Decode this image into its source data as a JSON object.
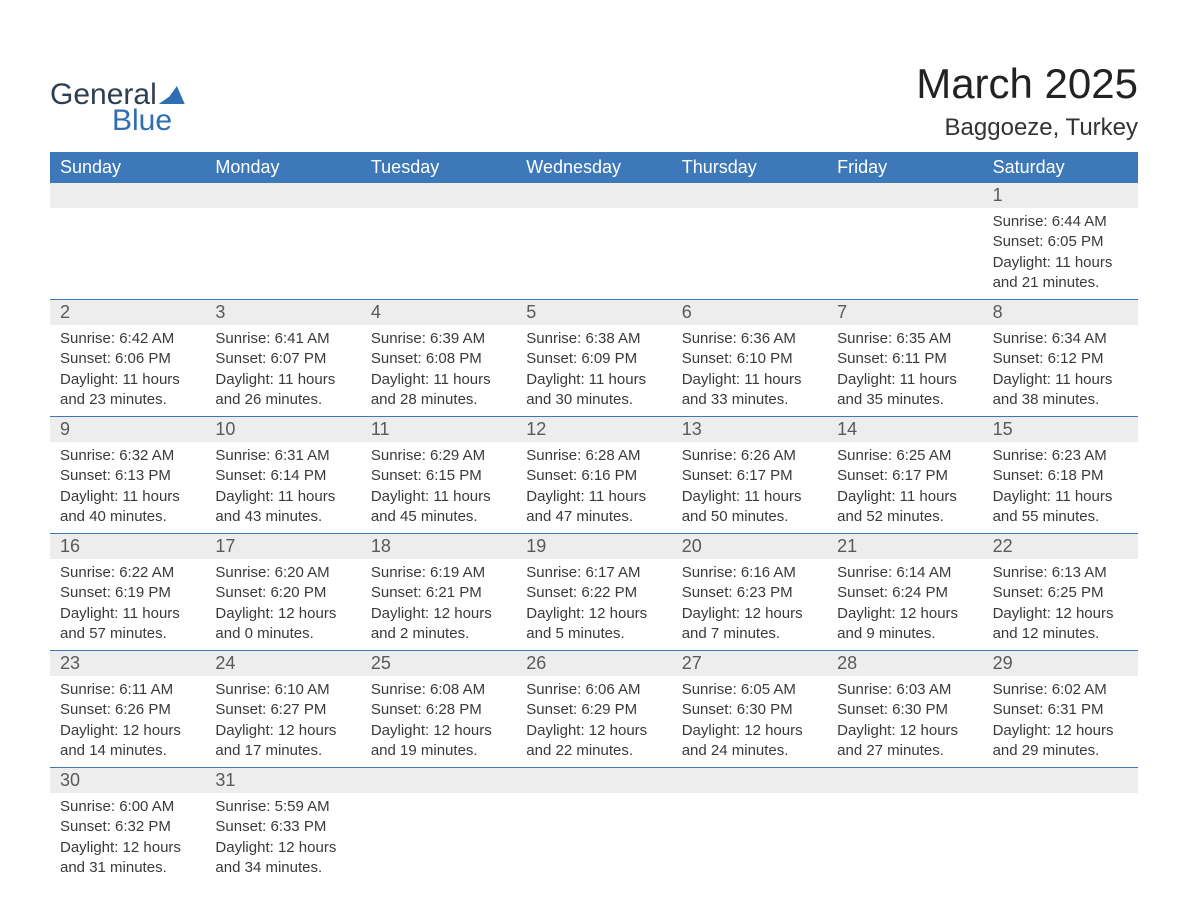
{
  "colors": {
    "header_bg": "#3d78b8",
    "header_text": "#ffffff",
    "daynum_bg": "#ededed",
    "body_text": "#3a3a3a",
    "row_border": "#3d78b8",
    "logo_dark": "#2d3e50",
    "logo_blue": "#2f6eb0"
  },
  "logo": {
    "word1": "General",
    "word2": "Blue"
  },
  "title": {
    "month": "March 2025",
    "location": "Baggoeze, Turkey"
  },
  "weekdays": [
    "Sunday",
    "Monday",
    "Tuesday",
    "Wednesday",
    "Thursday",
    "Friday",
    "Saturday"
  ],
  "weeks": [
    [
      {
        "n": "",
        "lines": []
      },
      {
        "n": "",
        "lines": []
      },
      {
        "n": "",
        "lines": []
      },
      {
        "n": "",
        "lines": []
      },
      {
        "n": "",
        "lines": []
      },
      {
        "n": "",
        "lines": []
      },
      {
        "n": "1",
        "lines": [
          "Sunrise: 6:44 AM",
          "Sunset: 6:05 PM",
          "Daylight: 11 hours and 21 minutes."
        ]
      }
    ],
    [
      {
        "n": "2",
        "lines": [
          "Sunrise: 6:42 AM",
          "Sunset: 6:06 PM",
          "Daylight: 11 hours and 23 minutes."
        ]
      },
      {
        "n": "3",
        "lines": [
          "Sunrise: 6:41 AM",
          "Sunset: 6:07 PM",
          "Daylight: 11 hours and 26 minutes."
        ]
      },
      {
        "n": "4",
        "lines": [
          "Sunrise: 6:39 AM",
          "Sunset: 6:08 PM",
          "Daylight: 11 hours and 28 minutes."
        ]
      },
      {
        "n": "5",
        "lines": [
          "Sunrise: 6:38 AM",
          "Sunset: 6:09 PM",
          "Daylight: 11 hours and 30 minutes."
        ]
      },
      {
        "n": "6",
        "lines": [
          "Sunrise: 6:36 AM",
          "Sunset: 6:10 PM",
          "Daylight: 11 hours and 33 minutes."
        ]
      },
      {
        "n": "7",
        "lines": [
          "Sunrise: 6:35 AM",
          "Sunset: 6:11 PM",
          "Daylight: 11 hours and 35 minutes."
        ]
      },
      {
        "n": "8",
        "lines": [
          "Sunrise: 6:34 AM",
          "Sunset: 6:12 PM",
          "Daylight: 11 hours and 38 minutes."
        ]
      }
    ],
    [
      {
        "n": "9",
        "lines": [
          "Sunrise: 6:32 AM",
          "Sunset: 6:13 PM",
          "Daylight: 11 hours and 40 minutes."
        ]
      },
      {
        "n": "10",
        "lines": [
          "Sunrise: 6:31 AM",
          "Sunset: 6:14 PM",
          "Daylight: 11 hours and 43 minutes."
        ]
      },
      {
        "n": "11",
        "lines": [
          "Sunrise: 6:29 AM",
          "Sunset: 6:15 PM",
          "Daylight: 11 hours and 45 minutes."
        ]
      },
      {
        "n": "12",
        "lines": [
          "Sunrise: 6:28 AM",
          "Sunset: 6:16 PM",
          "Daylight: 11 hours and 47 minutes."
        ]
      },
      {
        "n": "13",
        "lines": [
          "Sunrise: 6:26 AM",
          "Sunset: 6:17 PM",
          "Daylight: 11 hours and 50 minutes."
        ]
      },
      {
        "n": "14",
        "lines": [
          "Sunrise: 6:25 AM",
          "Sunset: 6:17 PM",
          "Daylight: 11 hours and 52 minutes."
        ]
      },
      {
        "n": "15",
        "lines": [
          "Sunrise: 6:23 AM",
          "Sunset: 6:18 PM",
          "Daylight: 11 hours and 55 minutes."
        ]
      }
    ],
    [
      {
        "n": "16",
        "lines": [
          "Sunrise: 6:22 AM",
          "Sunset: 6:19 PM",
          "Daylight: 11 hours and 57 minutes."
        ]
      },
      {
        "n": "17",
        "lines": [
          "Sunrise: 6:20 AM",
          "Sunset: 6:20 PM",
          "Daylight: 12 hours and 0 minutes."
        ]
      },
      {
        "n": "18",
        "lines": [
          "Sunrise: 6:19 AM",
          "Sunset: 6:21 PM",
          "Daylight: 12 hours and 2 minutes."
        ]
      },
      {
        "n": "19",
        "lines": [
          "Sunrise: 6:17 AM",
          "Sunset: 6:22 PM",
          "Daylight: 12 hours and 5 minutes."
        ]
      },
      {
        "n": "20",
        "lines": [
          "Sunrise: 6:16 AM",
          "Sunset: 6:23 PM",
          "Daylight: 12 hours and 7 minutes."
        ]
      },
      {
        "n": "21",
        "lines": [
          "Sunrise: 6:14 AM",
          "Sunset: 6:24 PM",
          "Daylight: 12 hours and 9 minutes."
        ]
      },
      {
        "n": "22",
        "lines": [
          "Sunrise: 6:13 AM",
          "Sunset: 6:25 PM",
          "Daylight: 12 hours and 12 minutes."
        ]
      }
    ],
    [
      {
        "n": "23",
        "lines": [
          "Sunrise: 6:11 AM",
          "Sunset: 6:26 PM",
          "Daylight: 12 hours and 14 minutes."
        ]
      },
      {
        "n": "24",
        "lines": [
          "Sunrise: 6:10 AM",
          "Sunset: 6:27 PM",
          "Daylight: 12 hours and 17 minutes."
        ]
      },
      {
        "n": "25",
        "lines": [
          "Sunrise: 6:08 AM",
          "Sunset: 6:28 PM",
          "Daylight: 12 hours and 19 minutes."
        ]
      },
      {
        "n": "26",
        "lines": [
          "Sunrise: 6:06 AM",
          "Sunset: 6:29 PM",
          "Daylight: 12 hours and 22 minutes."
        ]
      },
      {
        "n": "27",
        "lines": [
          "Sunrise: 6:05 AM",
          "Sunset: 6:30 PM",
          "Daylight: 12 hours and 24 minutes."
        ]
      },
      {
        "n": "28",
        "lines": [
          "Sunrise: 6:03 AM",
          "Sunset: 6:30 PM",
          "Daylight: 12 hours and 27 minutes."
        ]
      },
      {
        "n": "29",
        "lines": [
          "Sunrise: 6:02 AM",
          "Sunset: 6:31 PM",
          "Daylight: 12 hours and 29 minutes."
        ]
      }
    ],
    [
      {
        "n": "30",
        "lines": [
          "Sunrise: 6:00 AM",
          "Sunset: 6:32 PM",
          "Daylight: 12 hours and 31 minutes."
        ]
      },
      {
        "n": "31",
        "lines": [
          "Sunrise: 5:59 AM",
          "Sunset: 6:33 PM",
          "Daylight: 12 hours and 34 minutes."
        ]
      },
      {
        "n": "",
        "lines": []
      },
      {
        "n": "",
        "lines": []
      },
      {
        "n": "",
        "lines": []
      },
      {
        "n": "",
        "lines": []
      },
      {
        "n": "",
        "lines": []
      }
    ]
  ]
}
